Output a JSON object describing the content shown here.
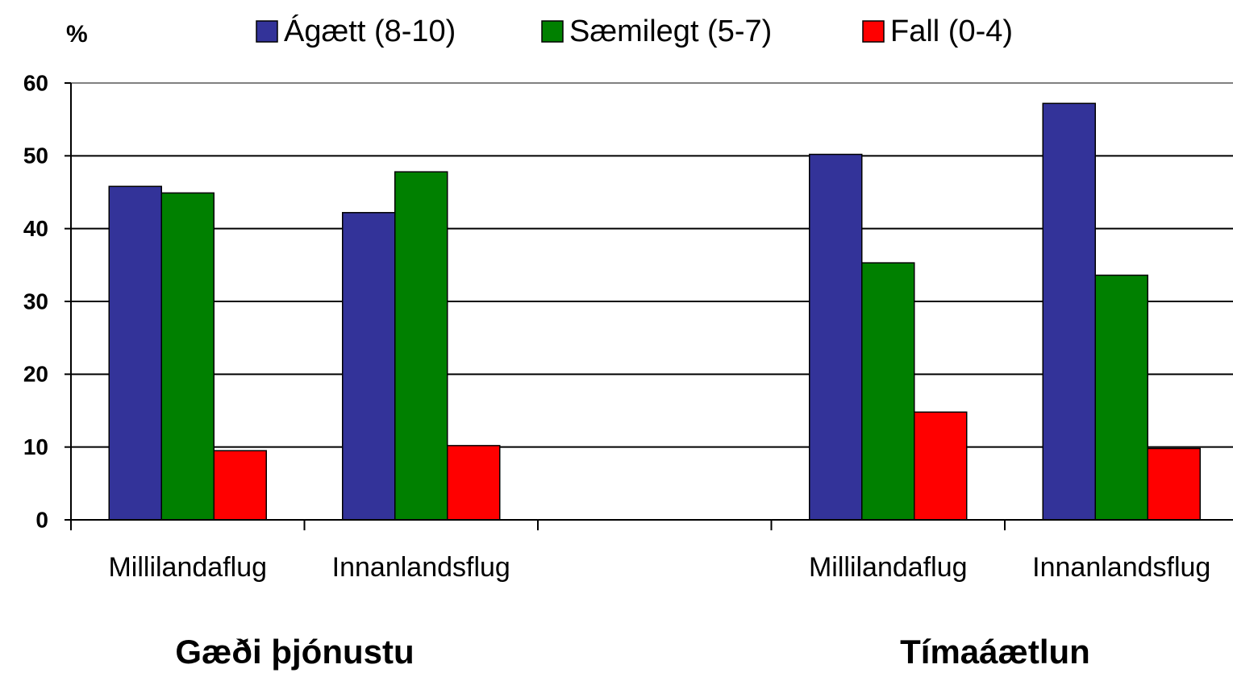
{
  "chart_data": {
    "type": "bar",
    "ylabel": "%",
    "categories": [
      "Millilandaflug",
      "Innanlandsflug",
      null,
      "Millilandaflug",
      "Innanlandsflug"
    ],
    "group_labels": [
      "Gæði þjónustu",
      "Tímaáætlun"
    ],
    "series": [
      {
        "name": "Ágætt (8-10)",
        "color": "#333399",
        "values": [
          45.8,
          42.2,
          null,
          50.2,
          57.2
        ]
      },
      {
        "name": "Sæmilegt (5-7)",
        "color": "#008000",
        "values": [
          44.9,
          47.8,
          null,
          35.3,
          33.6
        ]
      },
      {
        "name": "Fall (0-4)",
        "color": "#ff0000",
        "values": [
          9.5,
          10.2,
          null,
          14.8,
          9.8
        ]
      }
    ],
    "ylim": [
      0,
      60
    ],
    "yticks": [
      0,
      10,
      20,
      30,
      40,
      50,
      60
    ],
    "grid": true,
    "legend": "top"
  }
}
